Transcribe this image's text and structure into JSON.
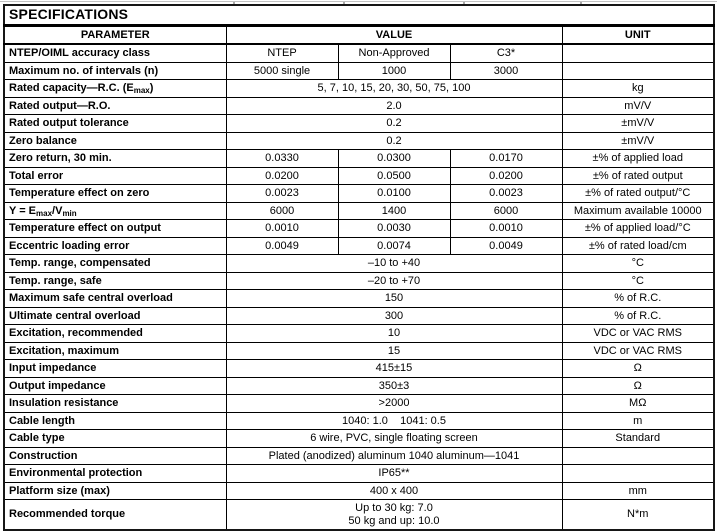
{
  "title": "SPECIFICATIONS",
  "columns": {
    "parameter": "PARAMETER",
    "value": "VALUE",
    "unit": "UNIT"
  },
  "rows": [
    {
      "param": "NTEP/OIML accuracy class",
      "values": [
        "NTEP",
        "Non-Approved",
        "C3*"
      ],
      "unit": ""
    },
    {
      "param": "Maximum no. of intervals (n)",
      "values": [
        "5000 single",
        "1000",
        "3000"
      ],
      "unit": ""
    },
    {
      "param": "Rated capacity—R.C. (E[sub]max[/sub])",
      "value": "5, 7, 10, 15, 20, 30, 50, 75, 100",
      "unit": "kg"
    },
    {
      "param": "Rated output—R.O.",
      "value": "2.0",
      "unit": "mV/V"
    },
    {
      "param": "Rated output tolerance",
      "value": "0.2",
      "unit": "±mV/V"
    },
    {
      "param": "Zero balance",
      "value": "0.2",
      "unit": "±mV/V"
    },
    {
      "param": "Zero return, 30 min.",
      "values": [
        "0.0330",
        "0.0300",
        "0.0170"
      ],
      "unit": "±% of applied load"
    },
    {
      "param": "Total error",
      "values": [
        "0.0200",
        "0.0500",
        "0.0200"
      ],
      "unit": "±% of rated output"
    },
    {
      "param": "Temperature effect on zero",
      "values": [
        "0.0023",
        "0.0100",
        "0.0023"
      ],
      "unit": "±% of rated output/°C"
    },
    {
      "param": "Y = E[sub]max[/sub]/V[sub]min[/sub]",
      "values": [
        "6000",
        "1400",
        "6000"
      ],
      "unit": "Maximum available 10000"
    },
    {
      "param": "Temperature effect on output",
      "values": [
        "0.0010",
        "0.0030",
        "0.0010"
      ],
      "unit": "±% of applied load/°C"
    },
    {
      "param": "Eccentric loading error",
      "values": [
        "0.0049",
        "0.0074",
        "0.0049"
      ],
      "unit": "±% of rated load/cm"
    },
    {
      "param": "Temp. range, compensated",
      "value": "–10 to +40",
      "unit": "°C"
    },
    {
      "param": "Temp. range, safe",
      "value": "–20 to +70",
      "unit": "°C"
    },
    {
      "param": "Maximum safe central overload",
      "value": "150",
      "unit": "% of R.C."
    },
    {
      "param": "Ultimate central overload",
      "value": "300",
      "unit": "% of R.C."
    },
    {
      "param": "Excitation, recommended",
      "value": "10",
      "unit": "VDC or VAC RMS"
    },
    {
      "param": "Excitation, maximum",
      "value": "15",
      "unit": "VDC or VAC RMS"
    },
    {
      "param": "Input impedance",
      "value": "415±15",
      "unit": "Ω"
    },
    {
      "param": "Output impedance",
      "value": "350±3",
      "unit": "Ω"
    },
    {
      "param": "Insulation resistance",
      "value": ">2000",
      "unit": "MΩ"
    },
    {
      "param": "Cable length",
      "value": "1040: 1.0    1041: 0.5",
      "unit": "m"
    },
    {
      "param": "Cable type",
      "value": "6 wire, PVC, single floating screen",
      "unit": "Standard"
    },
    {
      "param": "Construction",
      "value": "Plated (anodized) aluminum 1040 aluminum—1041",
      "unit": ""
    },
    {
      "param": "Environmental protection",
      "value": "IP65**",
      "unit": ""
    },
    {
      "param": "Platform size (max)",
      "value": "400 x 400",
      "unit": "mm"
    },
    {
      "param": "Recommended torque",
      "value": "Up to 30 kg: 7.0\n50 kg and up: 10.0",
      "unit": "N*m"
    }
  ]
}
